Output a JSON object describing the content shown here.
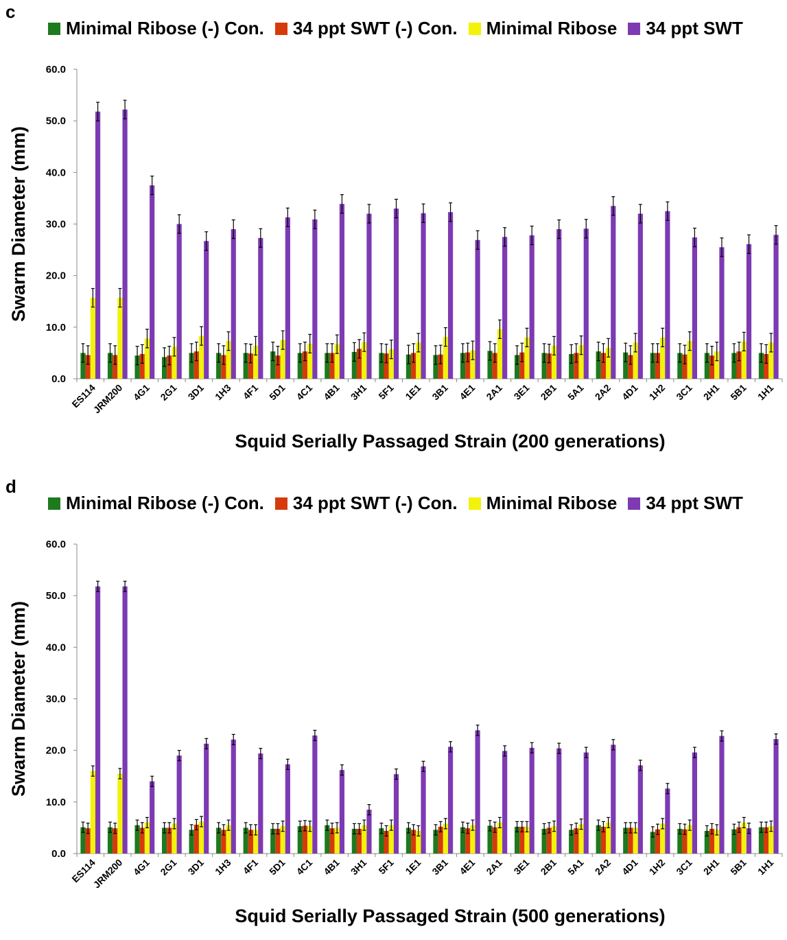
{
  "panels": [
    {
      "letter": "c",
      "legend": [
        "Minimal Ribose (-) Con.",
        "34 ppt SWT (-) Con.",
        "Minimal Ribose",
        "34 ppt SWT"
      ],
      "chart_data": {
        "type": "bar",
        "xlabel": "Squid Serially Passaged Strain (200 generations)",
        "ylabel": "Swarm Diameter (mm)",
        "ylim": [
          0,
          60
        ],
        "yticks": [
          "0.0",
          "10.0",
          "20.0",
          "30.0",
          "40.0",
          "50.0",
          "60.0"
        ],
        "categories": [
          "ES114",
          "JRM200",
          "4G1",
          "2G1",
          "3D1",
          "1H3",
          "4F1",
          "5D1",
          "4C1",
          "4B1",
          "3H1",
          "5F1",
          "1E1",
          "3B1",
          "4E1",
          "2A1",
          "3E1",
          "2B1",
          "5A1",
          "2A2",
          "4D1",
          "1H2",
          "3C1",
          "2H1",
          "5B1",
          "1H1"
        ],
        "series": [
          {
            "name": "Minimal Ribose (-) Con.",
            "color": "#1e7a1e",
            "values": [
              5.0,
              5.0,
              4.5,
              4.2,
              5.0,
              5.0,
              5.0,
              5.3,
              5.0,
              5.0,
              5.2,
              5.0,
              4.7,
              4.6,
              5.0,
              5.4,
              4.6,
              5.0,
              4.8,
              5.3,
              5.1,
              5.0,
              5.0,
              5.0,
              5.0,
              5.0
            ],
            "errors": [
              1.8,
              1.8,
              1.8,
              1.8,
              1.8,
              1.8,
              1.8,
              1.8,
              1.8,
              1.8,
              1.8,
              1.8,
              1.8,
              1.8,
              1.8,
              1.8,
              1.8,
              1.8,
              1.8,
              1.8,
              1.8,
              1.8,
              1.8,
              1.8,
              1.8,
              1.8
            ]
          },
          {
            "name": "34 ppt SWT (-) Con.",
            "color": "#d63a0a",
            "values": [
              4.6,
              4.6,
              4.8,
              4.5,
              5.3,
              4.6,
              4.9,
              4.5,
              5.3,
              5.0,
              5.8,
              4.9,
              5.0,
              4.7,
              5.1,
              5.0,
              5.1,
              4.9,
              5.0,
              5.0,
              4.6,
              5.0,
              4.7,
              4.5,
              5.3,
              4.8
            ],
            "errors": [
              1.8,
              1.8,
              1.8,
              1.8,
              1.8,
              1.8,
              1.8,
              1.8,
              1.8,
              1.8,
              1.8,
              1.8,
              1.8,
              1.8,
              1.8,
              1.8,
              1.8,
              1.8,
              1.8,
              1.8,
              1.8,
              1.8,
              1.8,
              1.8,
              1.8,
              1.8
            ]
          },
          {
            "name": "Minimal Ribose",
            "color": "#f2f20a",
            "values": [
              15.7,
              15.7,
              7.8,
              6.2,
              8.3,
              7.3,
              6.4,
              7.5,
              6.8,
              6.7,
              7.1,
              5.7,
              7.0,
              8.1,
              5.5,
              9.6,
              8.0,
              6.4,
              6.5,
              6.0,
              7.0,
              8.0,
              7.3,
              5.3,
              7.2,
              7.0
            ],
            "errors": [
              1.8,
              1.8,
              1.8,
              1.8,
              1.8,
              1.8,
              1.8,
              1.8,
              1.8,
              1.8,
              1.8,
              1.8,
              1.8,
              1.8,
              1.8,
              1.8,
              1.8,
              1.8,
              1.8,
              1.8,
              1.8,
              1.8,
              1.8,
              1.8,
              1.8,
              1.8
            ]
          },
          {
            "name": "34 ppt SWT",
            "color": "#7d3ab3",
            "values": [
              51.8,
              52.2,
              37.5,
              30.0,
              26.7,
              29.0,
              27.3,
              31.3,
              30.9,
              33.9,
              32.0,
              33.0,
              32.1,
              32.3,
              26.9,
              27.5,
              27.8,
              29.0,
              29.1,
              33.5,
              32.0,
              32.5,
              27.4,
              25.5,
              26.1,
              27.9
            ],
            "errors": [
              1.8,
              1.8,
              1.8,
              1.8,
              1.8,
              1.8,
              1.8,
              1.8,
              1.8,
              1.8,
              1.8,
              1.8,
              1.8,
              1.8,
              1.8,
              1.8,
              1.8,
              1.8,
              1.8,
              1.8,
              1.8,
              1.8,
              1.8,
              1.8,
              1.8,
              1.8
            ]
          }
        ]
      }
    },
    {
      "letter": "d",
      "legend": [
        "Minimal Ribose (-) Con.",
        "34 ppt SWT (-) Con.",
        "Minimal Ribose",
        "34 ppt SWT"
      ],
      "chart_data": {
        "type": "bar",
        "xlabel": "Squid Serially Passaged Strain (500 generations)",
        "ylabel": "Swarm Diameter (mm)",
        "ylim": [
          0,
          60
        ],
        "yticks": [
          "0.0",
          "10.0",
          "20.0",
          "30.0",
          "40.0",
          "50.0",
          "60.0"
        ],
        "categories": [
          "ES114",
          "JRM200",
          "4G1",
          "2G1",
          "3D1",
          "1H3",
          "4F1",
          "5D1",
          "4C1",
          "4B1",
          "3H1",
          "5F1",
          "1E1",
          "3B1",
          "4E1",
          "2A1",
          "3E1",
          "2B1",
          "5A1",
          "2A2",
          "4D1",
          "1H2",
          "3C1",
          "2H1",
          "5B1",
          "1H1"
        ],
        "series": [
          {
            "name": "Minimal Ribose (-) Con.",
            "color": "#1e7a1e",
            "values": [
              5.1,
              5.1,
              5.5,
              5.0,
              4.6,
              5.0,
              5.0,
              4.8,
              5.3,
              5.5,
              4.8,
              4.9,
              5.0,
              4.6,
              5.1,
              5.4,
              5.2,
              4.8,
              4.6,
              5.5,
              5.0,
              4.2,
              4.8,
              4.4,
              4.7,
              5.1
            ],
            "errors": [
              1.0,
              1.0,
              1.0,
              1.0,
              1.0,
              1.0,
              1.0,
              1.0,
              1.0,
              1.0,
              1.0,
              1.0,
              1.0,
              1.0,
              1.0,
              1.0,
              1.0,
              1.0,
              1.0,
              1.0,
              1.0,
              1.0,
              1.0,
              1.0,
              1.0,
              1.0
            ]
          },
          {
            "name": "34 ppt SWT (-) Con.",
            "color": "#d63a0a",
            "values": [
              4.9,
              4.9,
              5.0,
              5.0,
              5.6,
              4.6,
              4.6,
              4.8,
              5.4,
              4.9,
              4.8,
              4.4,
              4.6,
              5.2,
              4.9,
              5.1,
              5.2,
              5.0,
              4.9,
              5.2,
              5.0,
              4.7,
              4.7,
              4.8,
              5.1,
              5.1
            ],
            "errors": [
              1.0,
              1.0,
              1.0,
              1.0,
              1.0,
              1.0,
              1.0,
              1.0,
              1.0,
              1.0,
              1.0,
              1.0,
              1.0,
              1.0,
              1.0,
              1.0,
              1.0,
              1.0,
              1.0,
              1.0,
              1.0,
              1.0,
              1.0,
              1.0,
              1.0,
              1.0
            ]
          },
          {
            "name": "Minimal Ribose",
            "color": "#f2f20a",
            "values": [
              16.0,
              15.5,
              6.0,
              5.8,
              6.2,
              5.5,
              4.6,
              5.3,
              5.3,
              5.0,
              5.5,
              5.5,
              4.4,
              5.8,
              5.5,
              6.0,
              5.2,
              5.3,
              5.7,
              6.0,
              5.0,
              5.8,
              5.5,
              4.6,
              6.0,
              5.3
            ],
            "errors": [
              1.0,
              1.0,
              1.0,
              1.0,
              1.0,
              1.0,
              1.0,
              1.0,
              1.0,
              1.0,
              1.0,
              1.0,
              1.0,
              1.0,
              1.0,
              1.0,
              1.0,
              1.0,
              1.0,
              1.0,
              1.0,
              1.0,
              1.0,
              1.0,
              1.0,
              1.0
            ]
          },
          {
            "name": "34 ppt SWT",
            "color": "#7d3ab3",
            "values": [
              51.8,
              51.8,
              14.0,
              19.0,
              21.3,
              22.1,
              19.4,
              17.3,
              22.9,
              16.2,
              8.5,
              15.4,
              16.9,
              20.7,
              23.9,
              19.9,
              20.5,
              20.4,
              19.6,
              21.1,
              17.1,
              12.6,
              19.6,
              22.8,
              4.9,
              22.2
            ],
            "errors": [
              1.0,
              1.0,
              1.0,
              1.0,
              1.0,
              1.0,
              1.0,
              1.0,
              1.0,
              1.0,
              1.0,
              1.0,
              1.0,
              1.0,
              1.0,
              1.0,
              1.0,
              1.0,
              1.0,
              1.0,
              1.0,
              1.0,
              1.0,
              1.0,
              1.0,
              1.0
            ]
          }
        ]
      }
    }
  ]
}
